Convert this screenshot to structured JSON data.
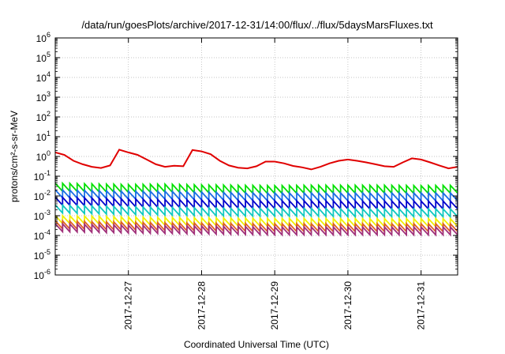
{
  "chart_data": {
    "type": "line",
    "title": "/data/run/goesPlots/archive/2017-12-31/14:00/flux/../flux/5daysMarsFluxes.txt",
    "xlabel": "Coordinated Universal Time (UTC)",
    "ylabel": "protons/cm²-s-sr-MeV",
    "y_scale": "log",
    "ylim": [
      1e-06,
      1000000.0
    ],
    "xlim": [
      "2017-12-26T00:00",
      "2017-12-31T12:00"
    ],
    "grid": true,
    "x_ticks": [
      {
        "label": "2017-12-27",
        "value": "2017-12-27T00:00"
      },
      {
        "label": "2017-12-28",
        "value": "2017-12-28T00:00"
      },
      {
        "label": "2017-12-29",
        "value": "2017-12-29T00:00"
      },
      {
        "label": "2017-12-30",
        "value": "2017-12-30T00:00"
      },
      {
        "label": "2017-12-31",
        "value": "2017-12-31T00:00"
      }
    ],
    "y_ticks": [
      {
        "base": "10",
        "exp": "-6",
        "value": 1e-06
      },
      {
        "base": "10",
        "exp": "-5",
        "value": 1e-05
      },
      {
        "base": "10",
        "exp": "-4",
        "value": 0.0001
      },
      {
        "base": "10",
        "exp": "-3",
        "value": 0.001
      },
      {
        "base": "10",
        "exp": "-2",
        "value": 0.01
      },
      {
        "base": "10",
        "exp": "-1",
        "value": 0.1
      },
      {
        "base": "10",
        "exp": "0",
        "value": 1
      },
      {
        "base": "10",
        "exp": "1",
        "value": 10
      },
      {
        "base": "10",
        "exp": "2",
        "value": 100
      },
      {
        "base": "10",
        "exp": "3",
        "value": 1000
      },
      {
        "base": "10",
        "exp": "4",
        "value": 10000
      },
      {
        "base": "10",
        "exp": "5",
        "value": 100000
      },
      {
        "base": "10",
        "exp": "6",
        "value": 1000000
      }
    ],
    "series": [
      {
        "color": "#e00000",
        "x": [
          "2017-12-26T00:00",
          "2017-12-26T03:00",
          "2017-12-26T06:00",
          "2017-12-26T09:00",
          "2017-12-26T12:00",
          "2017-12-26T15:00",
          "2017-12-26T18:00",
          "2017-12-26T21:00",
          "2017-12-27T00:00",
          "2017-12-27T03:00",
          "2017-12-27T06:00",
          "2017-12-27T09:00",
          "2017-12-27T12:00",
          "2017-12-27T15:00",
          "2017-12-27T18:00",
          "2017-12-27T21:00",
          "2017-12-28T00:00",
          "2017-12-28T03:00",
          "2017-12-28T06:00",
          "2017-12-28T09:00",
          "2017-12-28T12:00",
          "2017-12-28T15:00",
          "2017-12-28T18:00",
          "2017-12-28T21:00",
          "2017-12-29T00:00",
          "2017-12-29T03:00",
          "2017-12-29T06:00",
          "2017-12-29T09:00",
          "2017-12-29T12:00",
          "2017-12-29T15:00",
          "2017-12-29T18:00",
          "2017-12-29T21:00",
          "2017-12-30T00:00",
          "2017-12-30T03:00",
          "2017-12-30T06:00",
          "2017-12-30T09:00",
          "2017-12-30T12:00",
          "2017-12-30T15:00",
          "2017-12-30T18:00",
          "2017-12-30T21:00",
          "2017-12-31T00:00",
          "2017-12-31T03:00",
          "2017-12-31T06:00",
          "2017-12-31T09:00",
          "2017-12-31T12:00"
        ],
        "values": [
          1.6,
          1.2,
          0.6,
          0.4,
          0.3,
          0.26,
          0.35,
          2.2,
          1.6,
          1.2,
          0.7,
          0.4,
          0.3,
          0.34,
          0.32,
          2.1,
          1.8,
          1.3,
          0.6,
          0.35,
          0.27,
          0.25,
          0.32,
          0.55,
          0.55,
          0.45,
          0.33,
          0.28,
          0.22,
          0.3,
          0.45,
          0.6,
          0.7,
          0.6,
          0.5,
          0.4,
          0.32,
          0.3,
          0.5,
          0.8,
          0.7,
          0.5,
          0.35,
          0.25,
          0.3
        ]
      },
      {
        "color": "#00e000",
        "x": [
          "2017-12-26T00:00",
          "2017-12-26T12:00",
          "2017-12-27T00:00",
          "2017-12-27T12:00",
          "2017-12-28T00:00",
          "2017-12-28T12:00",
          "2017-12-29T00:00",
          "2017-12-29T12:00",
          "2017-12-30T00:00",
          "2017-12-30T12:00",
          "2017-12-31T00:00",
          "2017-12-31T12:00"
        ],
        "values": [
          0.028,
          0.026,
          0.024,
          0.025,
          0.023,
          0.022,
          0.021,
          0.022,
          0.022,
          0.022,
          0.021,
          0.022
        ]
      },
      {
        "color": "#1a6ee6",
        "x": [
          "2017-12-26T00:00",
          "2017-12-26T12:00",
          "2017-12-27T00:00",
          "2017-12-27T12:00",
          "2017-12-28T00:00",
          "2017-12-28T12:00",
          "2017-12-29T00:00",
          "2017-12-29T12:00",
          "2017-12-30T00:00",
          "2017-12-30T12:00",
          "2017-12-31T00:00",
          "2017-12-31T12:00"
        ],
        "values": [
          0.013,
          0.012,
          0.011,
          0.011,
          0.01,
          0.0095,
          0.009,
          0.009,
          0.009,
          0.009,
          0.009,
          0.009
        ]
      },
      {
        "color": "#0000cc",
        "x": [
          "2017-12-26T00:00",
          "2017-12-26T12:00",
          "2017-12-27T00:00",
          "2017-12-27T12:00",
          "2017-12-28T00:00",
          "2017-12-28T12:00",
          "2017-12-29T00:00",
          "2017-12-29T12:00",
          "2017-12-30T00:00",
          "2017-12-30T12:00",
          "2017-12-31T00:00",
          "2017-12-31T12:00"
        ],
        "values": [
          0.0055,
          0.005,
          0.0045,
          0.0042,
          0.004,
          0.0038,
          0.0036,
          0.0036,
          0.0035,
          0.0035,
          0.0035,
          0.0035
        ]
      },
      {
        "color": "#10c8c0",
        "x": [
          "2017-12-26T00:00",
          "2017-12-26T12:00",
          "2017-12-27T00:00",
          "2017-12-27T12:00",
          "2017-12-28T00:00",
          "2017-12-28T12:00",
          "2017-12-29T00:00",
          "2017-12-29T12:00",
          "2017-12-30T00:00",
          "2017-12-30T12:00",
          "2017-12-31T00:00",
          "2017-12-31T12:00"
        ],
        "values": [
          0.0022,
          0.002,
          0.0018,
          0.0017,
          0.0016,
          0.0015,
          0.0015,
          0.0015,
          0.0014,
          0.0014,
          0.0014,
          0.0014
        ]
      },
      {
        "color": "#f0f000",
        "x": [
          "2017-12-26T00:00",
          "2017-12-26T12:00",
          "2017-12-27T00:00",
          "2017-12-27T12:00",
          "2017-12-28T00:00",
          "2017-12-28T12:00",
          "2017-12-29T00:00",
          "2017-12-29T12:00",
          "2017-12-30T00:00",
          "2017-12-30T12:00",
          "2017-12-31T00:00",
          "2017-12-31T12:00"
        ],
        "values": [
          0.00065,
          0.0006,
          0.00055,
          0.00052,
          0.0005,
          0.00048,
          0.00046,
          0.00046,
          0.00045,
          0.00045,
          0.00045,
          0.00045
        ]
      },
      {
        "color": "#e06020",
        "x": [
          "2017-12-26T00:00",
          "2017-12-26T12:00",
          "2017-12-27T00:00",
          "2017-12-27T12:00",
          "2017-12-28T00:00",
          "2017-12-28T12:00",
          "2017-12-29T00:00",
          "2017-12-29T12:00",
          "2017-12-30T00:00",
          "2017-12-30T12:00",
          "2017-12-31T00:00",
          "2017-12-31T12:00"
        ],
        "values": [
          0.00035,
          0.00032,
          0.0003,
          0.00028,
          0.00027,
          0.00026,
          0.00025,
          0.00025,
          0.00025,
          0.00025,
          0.00025,
          0.00025
        ]
      },
      {
        "color": "#a0307a",
        "x": [
          "2017-12-26T00:00",
          "2017-12-26T12:00",
          "2017-12-27T00:00",
          "2017-12-27T12:00",
          "2017-12-28T00:00",
          "2017-12-28T12:00",
          "2017-12-29T00:00",
          "2017-12-29T12:00",
          "2017-12-30T00:00",
          "2017-12-30T12:00",
          "2017-12-31T00:00",
          "2017-12-31T12:00"
        ],
        "values": [
          0.00025,
          0.00023,
          0.00021,
          0.0002,
          0.00019,
          0.00018,
          0.00017,
          0.00017,
          0.00017,
          0.00017,
          0.00017,
          0.00017
        ]
      }
    ]
  }
}
